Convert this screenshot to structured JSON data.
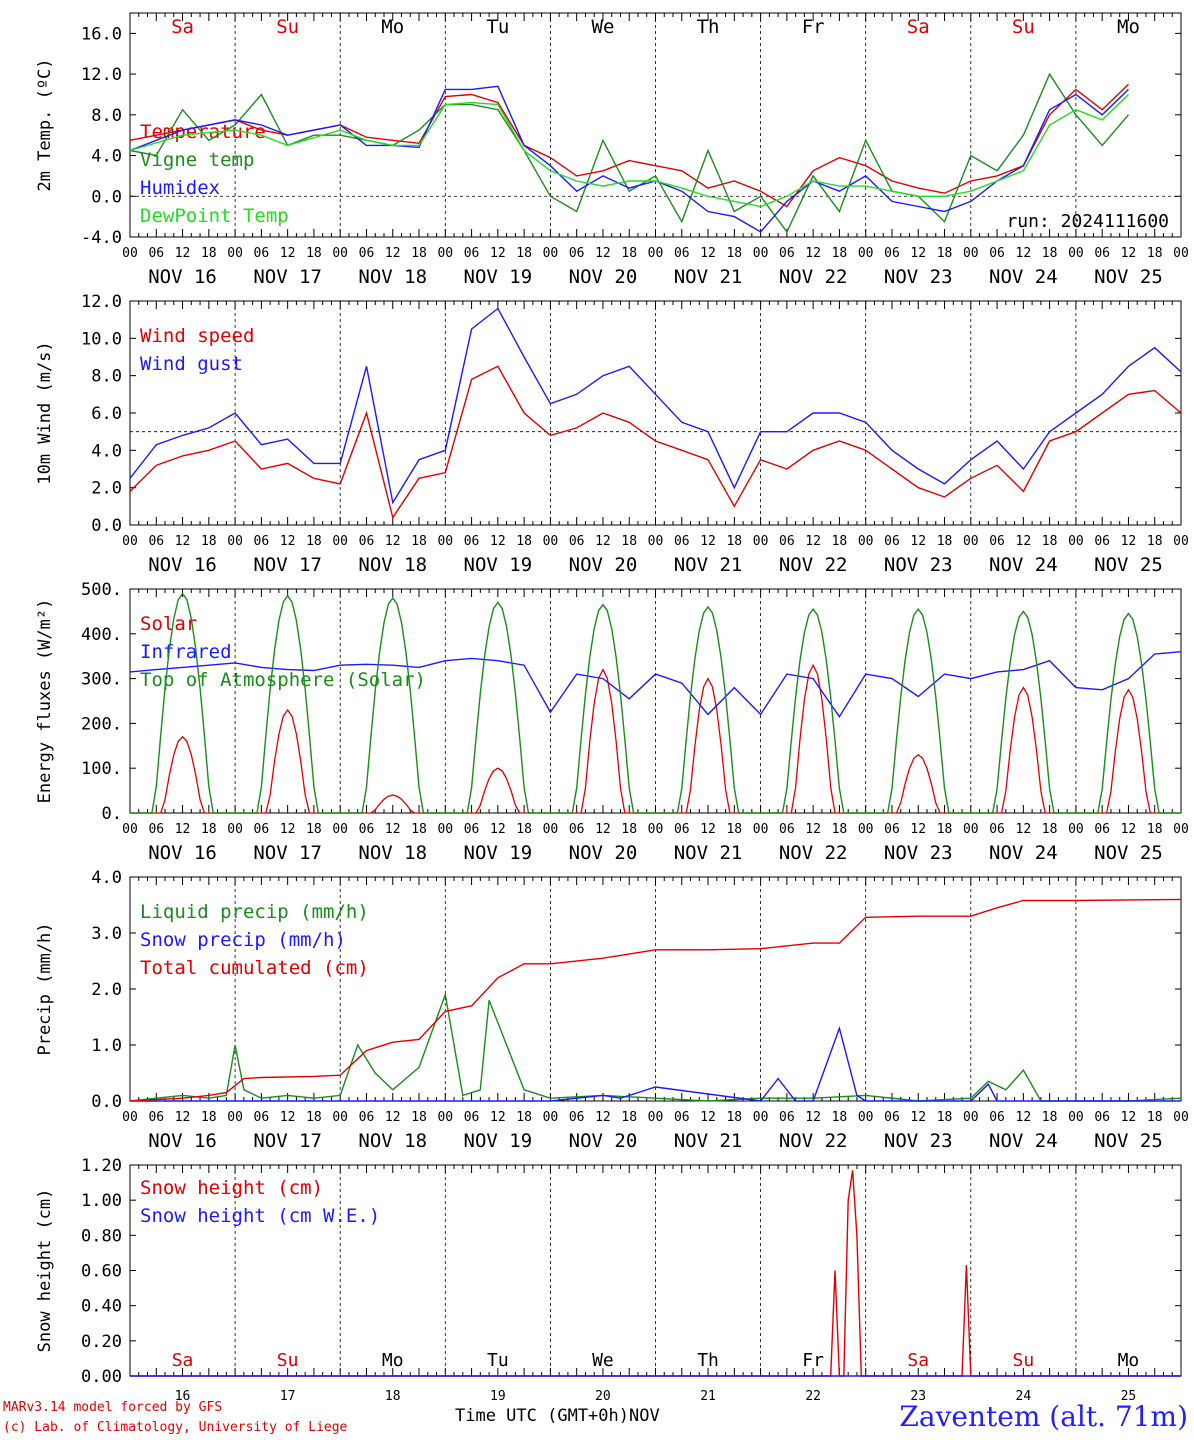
{
  "colors": {
    "red": "#e00000",
    "green": "#1a8c1a",
    "blue": "#1a1aff",
    "lightgreen": "#22dd22",
    "weekend": "#e00000",
    "weekday": "#000000"
  },
  "days": [
    {
      "name": "Sa",
      "date": "NOV 16",
      "num": "16",
      "weekend": true
    },
    {
      "name": "Su",
      "date": "NOV 17",
      "num": "17",
      "weekend": true
    },
    {
      "name": "Mo",
      "date": "NOV 18",
      "num": "18",
      "weekend": false
    },
    {
      "name": "Tu",
      "date": "NOV 19",
      "num": "19",
      "weekend": false
    },
    {
      "name": "We",
      "date": "NOV 20",
      "num": "20",
      "weekend": false
    },
    {
      "name": "Th",
      "date": "NOV 21",
      "num": "21",
      "weekend": false
    },
    {
      "name": "Fr",
      "date": "NOV 22",
      "num": "22",
      "weekend": false
    },
    {
      "name": "Sa",
      "date": "NOV 23",
      "num": "23",
      "weekend": true
    },
    {
      "name": "Su",
      "date": "NOV 24",
      "num": "24",
      "weekend": true
    },
    {
      "name": "Mo",
      "date": "NOV 25",
      "num": "25",
      "weekend": false
    }
  ],
  "hour_ticks": [
    "00",
    "06",
    "12",
    "18"
  ],
  "footer": {
    "credit_line1": "MARv3.14 model forced by GFS",
    "credit_line2": "(c) Lab. of Climatology, University of Liege",
    "time_label": "Time UTC (GMT+0h)",
    "month_label": "NOV",
    "station": "Zaventem (alt. 71m)"
  },
  "chart_data": [
    {
      "type": "line",
      "ylabel": "2m Temp. (ºC)",
      "ylim": [
        -4,
        18
      ],
      "yticks": [
        "-4.0",
        "0.0",
        "4.0",
        "8.0",
        "12.0",
        "16.0"
      ],
      "yticks_values": [
        -4,
        0,
        4,
        8,
        12,
        16
      ],
      "ref_line": 0,
      "annotation": "run: 2024111600",
      "x_unit": "hours from 2024-11-16 00 UTC",
      "series": [
        {
          "name": "Temperature",
          "color": "red",
          "x": [
            0,
            12,
            24,
            30,
            36,
            48,
            54,
            60,
            66,
            72,
            78,
            84,
            90,
            96,
            102,
            108,
            114,
            120,
            126,
            132,
            138,
            144,
            150,
            156,
            162,
            168,
            174,
            180,
            186,
            192,
            198,
            204,
            210,
            216,
            222,
            228
          ],
          "y": [
            5.5,
            6.5,
            7.5,
            6.5,
            6.0,
            7.0,
            5.8,
            5.5,
            5.2,
            9.8,
            10.0,
            9.2,
            5.0,
            3.8,
            2.0,
            2.5,
            3.5,
            3.0,
            2.5,
            0.8,
            1.5,
            0.5,
            -1.0,
            2.5,
            3.8,
            3.0,
            1.5,
            0.8,
            0.3,
            1.5,
            2.0,
            3.0,
            8.0,
            10.5,
            8.5,
            11.0
          ]
        },
        {
          "name": "Vigne temp",
          "color": "green",
          "x": [
            0,
            6,
            12,
            18,
            24,
            30,
            36,
            42,
            48,
            54,
            60,
            66,
            72,
            78,
            84,
            90,
            96,
            102,
            108,
            114,
            120,
            126,
            132,
            138,
            144,
            150,
            156,
            162,
            168,
            174,
            180,
            186,
            192,
            198,
            204,
            210,
            216,
            222,
            228
          ],
          "y": [
            4.5,
            4.0,
            8.5,
            5.5,
            7.0,
            10.0,
            5.0,
            6.0,
            6.0,
            5.5,
            5.0,
            6.5,
            9.0,
            9.0,
            8.5,
            4.5,
            0.0,
            -1.5,
            5.5,
            0.5,
            2.0,
            -2.5,
            4.5,
            -1.5,
            0.0,
            -3.5,
            2.0,
            -1.5,
            5.5,
            0.5,
            0.0,
            -2.5,
            4.0,
            2.5,
            6.0,
            12.0,
            8.0,
            5.0,
            8.0
          ]
        },
        {
          "name": "Humidex",
          "color": "blue",
          "x": [
            0,
            12,
            24,
            30,
            36,
            48,
            54,
            60,
            66,
            72,
            78,
            84,
            90,
            96,
            102,
            108,
            114,
            120,
            126,
            132,
            138,
            144,
            150,
            156,
            162,
            168,
            174,
            180,
            186,
            192,
            198,
            204,
            210,
            216,
            222,
            228
          ],
          "y": [
            4.5,
            6.5,
            7.5,
            7.0,
            6.0,
            7.0,
            5.0,
            5.0,
            4.8,
            10.5,
            10.5,
            10.8,
            5.0,
            3.0,
            0.5,
            2.0,
            0.8,
            1.5,
            0.5,
            -1.5,
            -2.0,
            -3.5,
            -0.5,
            1.5,
            0.5,
            2.0,
            -0.5,
            -1.0,
            -1.5,
            -0.5,
            1.5,
            3.0,
            8.5,
            10.0,
            8.0,
            10.5
          ]
        },
        {
          "name": "DewPoint Temp",
          "color": "lightgreen",
          "x": [
            0,
            12,
            24,
            30,
            36,
            48,
            54,
            60,
            66,
            72,
            78,
            84,
            90,
            96,
            102,
            108,
            114,
            120,
            126,
            132,
            138,
            144,
            150,
            156,
            162,
            168,
            174,
            180,
            186,
            192,
            198,
            204,
            210,
            216,
            222,
            228
          ],
          "y": [
            4.5,
            6.0,
            6.5,
            6.0,
            5.0,
            6.5,
            5.5,
            5.0,
            5.0,
            9.0,
            9.2,
            9.0,
            4.5,
            2.5,
            1.5,
            1.0,
            1.5,
            1.5,
            0.8,
            0.0,
            -0.5,
            -1.0,
            0.0,
            1.5,
            1.0,
            1.0,
            0.5,
            0.0,
            0.0,
            0.5,
            1.5,
            2.5,
            7.0,
            8.5,
            7.5,
            10.0
          ]
        }
      ]
    },
    {
      "type": "line",
      "ylabel": "10m Wind (m/s)",
      "ylim": [
        0,
        12
      ],
      "yticks": [
        "0.0",
        "2.0",
        "4.0",
        "6.0",
        "8.0",
        "10.0",
        "12.0"
      ],
      "yticks_values": [
        0,
        2,
        4,
        6,
        8,
        10,
        12
      ],
      "ref_line": 5,
      "x_unit": "hours from 2024-11-16 00 UTC",
      "series": [
        {
          "name": "Wind speed",
          "color": "red",
          "x": [
            0,
            6,
            12,
            18,
            24,
            30,
            36,
            42,
            48,
            54,
            60,
            66,
            72,
            78,
            84,
            90,
            96,
            102,
            108,
            114,
            120,
            126,
            132,
            138,
            144,
            150,
            156,
            162,
            168,
            174,
            180,
            186,
            192,
            198,
            204,
            210,
            216,
            222,
            228,
            234,
            240
          ],
          "y": [
            1.8,
            3.2,
            3.7,
            4.0,
            4.5,
            3.0,
            3.3,
            2.5,
            2.2,
            6.0,
            0.4,
            2.5,
            2.8,
            7.8,
            8.5,
            6.0,
            4.8,
            5.2,
            6.0,
            5.5,
            4.5,
            4.0,
            3.5,
            1.0,
            3.5,
            3.0,
            4.0,
            4.5,
            4.0,
            3.0,
            2.0,
            1.5,
            2.5,
            3.2,
            1.8,
            4.5,
            5.0,
            6.0,
            7.0,
            7.2,
            6.0
          ]
        },
        {
          "name": "Wind gust",
          "color": "blue",
          "x": [
            0,
            6,
            12,
            18,
            24,
            30,
            36,
            42,
            48,
            54,
            60,
            66,
            72,
            78,
            84,
            90,
            96,
            102,
            108,
            114,
            120,
            126,
            132,
            138,
            144,
            150,
            156,
            162,
            168,
            174,
            180,
            186,
            192,
            198,
            204,
            210,
            216,
            222,
            228,
            234,
            240
          ],
          "y": [
            2.5,
            4.3,
            4.8,
            5.2,
            6.0,
            4.3,
            4.6,
            3.3,
            3.3,
            8.5,
            1.2,
            3.5,
            4.0,
            10.5,
            11.6,
            9.0,
            6.5,
            7.0,
            8.0,
            8.5,
            7.0,
            5.5,
            5.0,
            2.0,
            5.0,
            5.0,
            6.0,
            6.0,
            5.5,
            4.0,
            3.0,
            2.2,
            3.5,
            4.5,
            3.0,
            5.0,
            6.0,
            7.0,
            8.5,
            9.5,
            8.2
          ]
        }
      ]
    },
    {
      "type": "line",
      "ylabel": "Energy fluxes (W/m²)",
      "ylim": [
        0,
        500
      ],
      "yticks": [
        "0.",
        "100.",
        "200.",
        "300.",
        "400.",
        "500."
      ],
      "yticks_values": [
        0,
        100,
        200,
        300,
        400,
        500
      ],
      "x_unit": "hours from 2024-11-16 00 UTC",
      "series": [
        {
          "name": "Solar",
          "color": "red",
          "type": "diurnal",
          "peaks": [
            170,
            230,
            40,
            100,
            320,
            300,
            330,
            130,
            280,
            275
          ]
        },
        {
          "name": "Infrared",
          "color": "blue",
          "x": [
            0,
            6,
            12,
            18,
            24,
            30,
            36,
            42,
            48,
            54,
            60,
            66,
            72,
            78,
            84,
            90,
            96,
            102,
            108,
            114,
            120,
            126,
            132,
            138,
            144,
            150,
            156,
            162,
            168,
            174,
            180,
            186,
            192,
            198,
            204,
            210,
            216,
            222,
            228,
            234,
            240
          ],
          "y": [
            315,
            320,
            325,
            330,
            335,
            325,
            320,
            318,
            330,
            332,
            330,
            325,
            340,
            345,
            340,
            330,
            225,
            310,
            300,
            255,
            310,
            290,
            220,
            280,
            220,
            310,
            300,
            215,
            310,
            300,
            260,
            310,
            300,
            315,
            320,
            340,
            280,
            275,
            300,
            355,
            360
          ]
        },
        {
          "name": "Top of Atmosphere (Solar)",
          "color": "green",
          "type": "diurnal",
          "peaks": [
            490,
            485,
            480,
            470,
            465,
            460,
            455,
            455,
            450,
            445
          ]
        }
      ]
    },
    {
      "type": "line",
      "ylabel": "Precip (mm/h)",
      "ylim": [
        0,
        4
      ],
      "yticks": [
        "0.0",
        "1.0",
        "2.0",
        "3.0",
        "4.0"
      ],
      "yticks_values": [
        0,
        1,
        2,
        3,
        4
      ],
      "x_unit": "hours from 2024-11-16 00 UTC",
      "series": [
        {
          "name": "Liquid precip (mm/h)",
          "color": "green",
          "x": [
            0,
            12,
            18,
            22,
            24,
            26,
            30,
            36,
            42,
            48,
            52,
            56,
            60,
            66,
            72,
            76,
            80,
            82,
            86,
            90,
            96,
            108,
            120,
            132,
            144,
            156,
            168,
            180,
            192,
            196,
            200,
            204,
            208,
            216,
            228,
            240
          ],
          "y": [
            0,
            0.1,
            0.05,
            0.1,
            1.0,
            0.2,
            0.05,
            0.1,
            0.05,
            0.1,
            1.0,
            0.5,
            0.2,
            0.6,
            1.9,
            0.1,
            0.2,
            1.8,
            1.0,
            0.2,
            0.05,
            0.1,
            0.05,
            0.0,
            0.05,
            0.05,
            0.1,
            0.0,
            0.05,
            0.35,
            0.2,
            0.55,
            0.0,
            0.0,
            0.0,
            0.05
          ]
        },
        {
          "name": "Snow precip (mm/h)",
          "color": "blue",
          "x": [
            0,
            96,
            108,
            112,
            120,
            144,
            148,
            152,
            156,
            162,
            166,
            168,
            192,
            196,
            198,
            240
          ],
          "y": [
            0,
            0,
            0.1,
            0.05,
            0.25,
            0,
            0.4,
            0,
            0,
            1.3,
            0.1,
            0,
            0,
            0.3,
            0,
            0
          ]
        },
        {
          "name": "Total cumulated (cm)",
          "color": "red",
          "x": [
            0,
            12,
            18,
            22,
            26,
            30,
            42,
            48,
            54,
            60,
            66,
            72,
            78,
            84,
            90,
            96,
            108,
            120,
            132,
            144,
            156,
            162,
            168,
            180,
            192,
            198,
            204,
            216,
            240
          ],
          "y": [
            0,
            0.05,
            0.1,
            0.15,
            0.4,
            0.42,
            0.44,
            0.46,
            0.9,
            1.05,
            1.1,
            1.6,
            1.7,
            2.2,
            2.45,
            2.45,
            2.55,
            2.7,
            2.7,
            2.72,
            2.82,
            2.82,
            3.28,
            3.3,
            3.3,
            3.45,
            3.58,
            3.58,
            3.6
          ]
        }
      ]
    },
    {
      "type": "line",
      "ylabel": "Snow height (cm)",
      "ylim": [
        0,
        1.2
      ],
      "yticks": [
        "0.00",
        "0.20",
        "0.40",
        "0.60",
        "0.80",
        "1.00",
        "1.20"
      ],
      "yticks_values": [
        0,
        0.2,
        0.4,
        0.6,
        0.8,
        1.0,
        1.2
      ],
      "x_unit": "hours from 2024-11-16 00 UTC",
      "series": [
        {
          "name": "Snow height (cm)",
          "color": "red",
          "x": [
            0,
            160,
            161,
            162,
            163,
            164,
            165,
            166,
            167,
            168,
            190,
            191,
            192,
            240
          ],
          "y": [
            0,
            0,
            0.6,
            0,
            0,
            1.0,
            1.17,
            0.8,
            0,
            0,
            0,
            0.63,
            0,
            0
          ]
        },
        {
          "name": "Snow height (cm W.E.)",
          "color": "blue",
          "x": [
            0,
            240
          ],
          "y": [
            0,
            0
          ]
        }
      ]
    }
  ]
}
